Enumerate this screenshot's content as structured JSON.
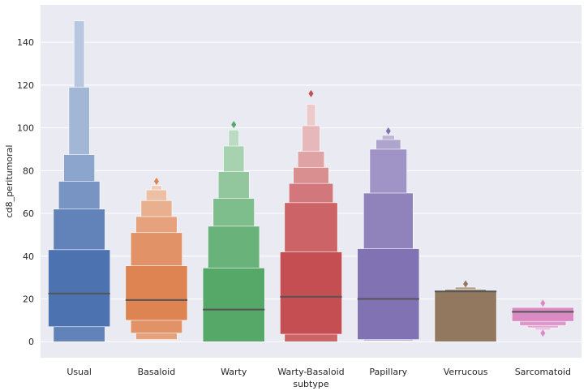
{
  "chart_data": {
    "type": "boxen",
    "xlabel": "subtype",
    "ylabel": "cd8_peritumoral",
    "ylim": [
      -7.5,
      157.5
    ],
    "yticks": [
      0,
      20,
      40,
      60,
      80,
      100,
      120,
      140
    ],
    "grid": true,
    "background": "#eaeaf2",
    "categories": [
      "Usual",
      "Basaloid",
      "Warty",
      "Warty-Basaloid",
      "Papillary",
      "Verrucous",
      "Sarcomatoid"
    ],
    "colors": [
      "#4c72b0",
      "#dd8452",
      "#55a868",
      "#c44e52",
      "#8172b3",
      "#937860",
      "#da8bc3"
    ],
    "median_color": "#555555",
    "series": [
      {
        "category": "Usual",
        "median": 22.5,
        "boxes": [
          [
            7,
            43
          ],
          [
            0,
            62
          ],
          [
            0,
            75
          ],
          [
            0,
            87.5
          ],
          [
            0,
            119
          ],
          [
            0,
            150
          ]
        ],
        "outliers": []
      },
      {
        "category": "Basaloid",
        "median": 19.5,
        "boxes": [
          [
            10,
            35.5
          ],
          [
            4,
            51
          ],
          [
            1,
            58.5
          ],
          [
            1,
            66
          ],
          [
            1,
            71
          ],
          [
            1,
            73
          ]
        ],
        "outliers": [
          75
        ]
      },
      {
        "category": "Warty",
        "median": 15,
        "boxes": [
          [
            0,
            34.5
          ],
          [
            0,
            54
          ],
          [
            0,
            67
          ],
          [
            0,
            79.5
          ],
          [
            0,
            91.5
          ],
          [
            0,
            99
          ]
        ],
        "outliers": [
          101.5
        ]
      },
      {
        "category": "Warty-Basaloid",
        "median": 21,
        "boxes": [
          [
            3.5,
            42
          ],
          [
            0,
            65
          ],
          [
            0,
            74
          ],
          [
            0,
            81.5
          ],
          [
            0,
            89
          ],
          [
            0,
            101
          ],
          [
            0,
            111
          ]
        ],
        "outliers": [
          116
        ]
      },
      {
        "category": "Papillary",
        "median": 20,
        "boxes": [
          [
            1,
            43.5
          ],
          [
            0.5,
            69.5
          ],
          [
            0.5,
            90
          ],
          [
            0.5,
            94.5
          ],
          [
            0.5,
            96.5
          ]
        ],
        "outliers": [
          98.5
        ]
      },
      {
        "category": "Verrucous",
        "median": 23.5,
        "boxes": [
          [
            0,
            23.5
          ],
          [
            0,
            24.5
          ],
          [
            0,
            25.5
          ]
        ],
        "outliers": [
          27
        ]
      },
      {
        "category": "Sarcomatoid",
        "median": 14,
        "boxes": [
          [
            9.5,
            16
          ],
          [
            7.5,
            14.5
          ],
          [
            6.5,
            12
          ],
          [
            5.5,
            10
          ]
        ],
        "outliers": [
          18,
          4
        ]
      }
    ]
  }
}
